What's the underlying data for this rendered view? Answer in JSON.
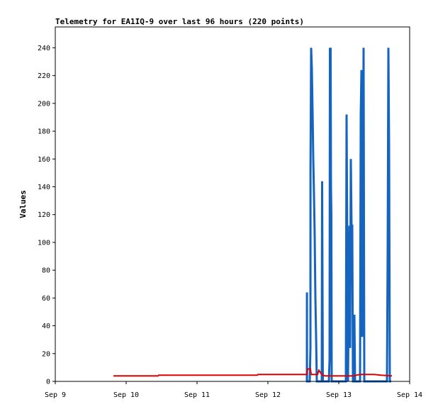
{
  "chart_data": {
    "type": "line",
    "title": "Telemetry for EA1IQ-9 over last 96 hours (220 points)",
    "xlabel": "",
    "ylabel": "Values",
    "xlim": [
      9.0,
      14.0
    ],
    "ylim": [
      0,
      255
    ],
    "x_ticks": [
      {
        "x": 9.0,
        "label": "Sep 9"
      },
      {
        "x": 10.0,
        "label": "Sep 10"
      },
      {
        "x": 11.0,
        "label": "Sep 11"
      },
      {
        "x": 12.0,
        "label": "Sep 12"
      },
      {
        "x": 13.0,
        "label": "Sep 13"
      },
      {
        "x": 14.0,
        "label": "Sep 14"
      }
    ],
    "y_ticks": [
      0,
      20,
      40,
      60,
      80,
      100,
      120,
      140,
      160,
      180,
      200,
      220,
      240
    ],
    "grid": false,
    "legend": "none",
    "series": [
      {
        "color": "#000000",
        "width": 1,
        "x": [
          9.82,
          13.75
        ],
        "y": [
          0,
          0
        ]
      },
      {
        "color": "#dd0000",
        "width": 2,
        "x": [
          9.82,
          10.45,
          10.46,
          11.85,
          11.86,
          12.55,
          12.56,
          12.6,
          12.61,
          12.7,
          12.72,
          12.76,
          12.8,
          13.2,
          13.3,
          13.5,
          13.6,
          13.75
        ],
        "y": [
          4,
          4,
          4.5,
          4.5,
          5,
          5,
          9,
          9,
          5,
          5,
          8,
          5,
          4,
          4,
          5,
          5,
          4.5,
          4
        ]
      },
      {
        "color": "#1565c0",
        "width": 3,
        "x": [
          12.55,
          12.551,
          12.552,
          12.585,
          12.59,
          12.6,
          12.601,
          12.61,
          12.62,
          12.63,
          12.64,
          12.65,
          12.66,
          12.67,
          12.68,
          12.69,
          12.7,
          12.701,
          12.76,
          12.765,
          12.77,
          12.775,
          12.85,
          12.86,
          12.87,
          12.875,
          12.88,
          12.885,
          12.89,
          12.895,
          12.9,
          12.91,
          12.92,
          12.95,
          12.96,
          12.97,
          13.05,
          13.06,
          13.065,
          13.07,
          13.08,
          13.09,
          13.1,
          13.11,
          13.12,
          13.13,
          13.14,
          13.15,
          13.16,
          13.17,
          13.18,
          13.19,
          13.2,
          13.21,
          13.22,
          13.23,
          13.24,
          13.25,
          13.26,
          13.3,
          13.31,
          13.32,
          13.33,
          13.34,
          13.35,
          13.36,
          13.37,
          13.38,
          13.39,
          13.4,
          13.41,
          13.42,
          13.43,
          13.44,
          13.45,
          13.55,
          13.6,
          13.65,
          13.68,
          13.69,
          13.7,
          13.71,
          13.72,
          13.73,
          13.74
        ],
        "y": [
          0,
          64,
          0,
          0,
          0,
          24,
          152,
          240,
          225,
          195,
          160,
          135,
          105,
          60,
          32,
          0,
          0,
          0,
          0,
          144,
          72,
          0,
          0,
          0,
          16,
          240,
          80,
          240,
          140,
          120,
          0,
          0,
          0,
          0,
          0,
          0,
          0,
          0,
          0,
          0,
          0,
          0,
          0,
          192,
          96,
          0,
          56,
          112,
          24,
          160,
          112,
          112,
          0,
          0,
          48,
          0,
          0,
          0,
          0,
          0,
          192,
          224,
          32,
          120,
          240,
          0,
          0,
          0,
          0,
          0,
          0,
          0,
          0,
          0,
          0,
          0,
          0,
          0,
          0,
          96,
          240,
          168,
          0,
          0,
          0
        ]
      }
    ]
  }
}
